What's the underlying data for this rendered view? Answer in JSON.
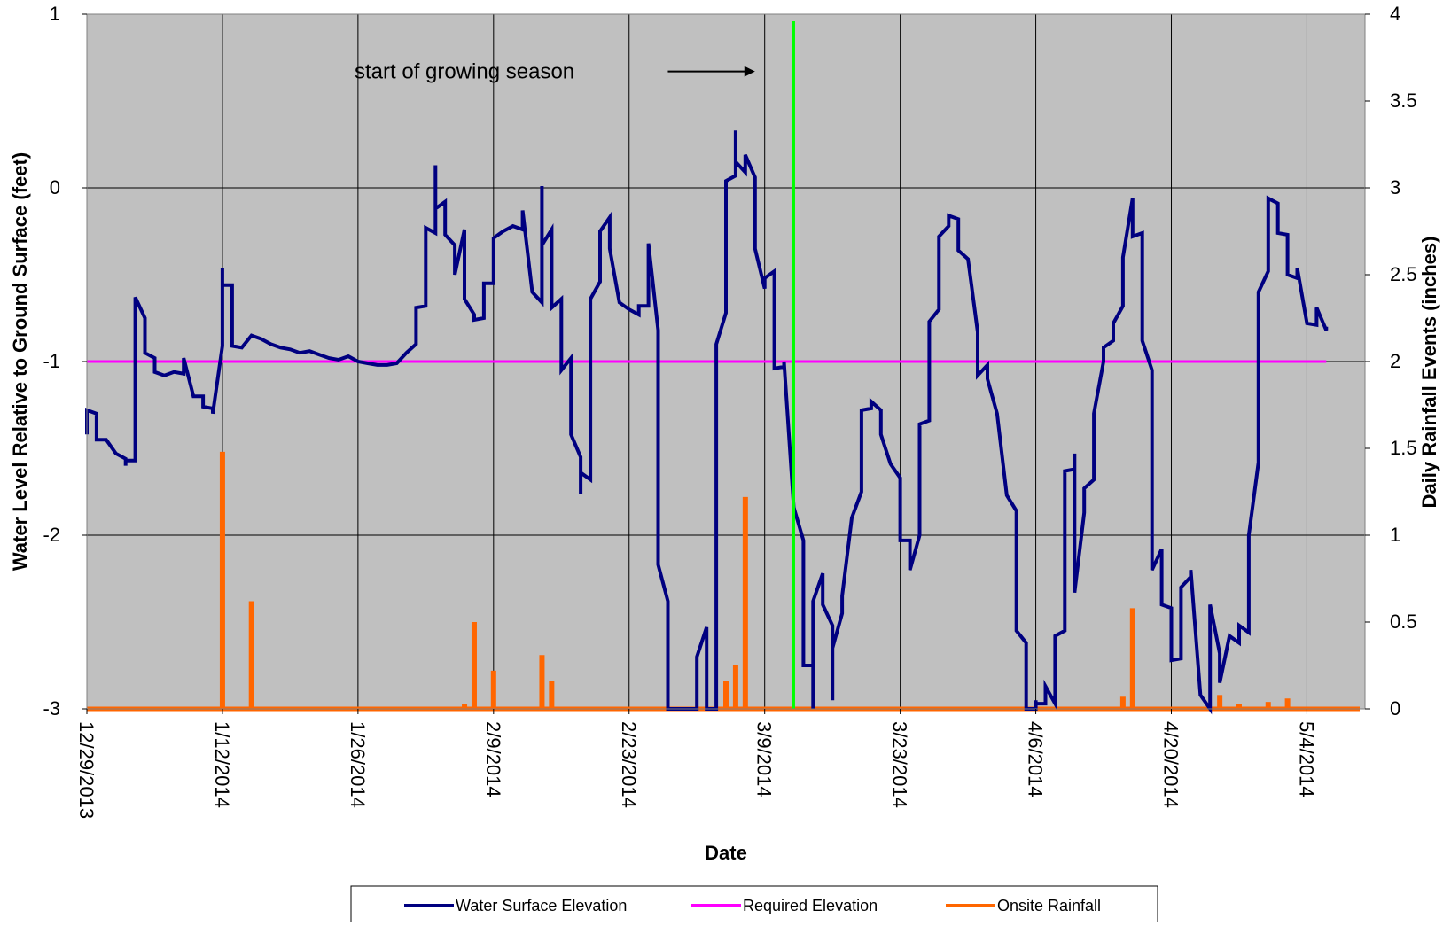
{
  "chart_data": {
    "type": "line",
    "xlabel": "Date",
    "ylabel": "Water Level Relative to Ground Surface (feet)",
    "y2label": "Daily Rainfall Events (inches)",
    "xlim": [
      "2013-12-29",
      "2014-05-10"
    ],
    "ylim": [
      -3,
      1
    ],
    "y2lim": [
      0,
      4
    ],
    "x_ticks": [
      "2013-12-29",
      "2014-01-12",
      "2014-01-26",
      "2014-02-09",
      "2014-02-23",
      "2014-03-09",
      "2014-03-23",
      "2014-04-06",
      "2014-04-20",
      "2014-05-04"
    ],
    "x_tick_labels": [
      "12/29/2013",
      "1/12/2014",
      "1/26/2014",
      "2/9/2014",
      "2/23/2014",
      "3/9/2014",
      "3/23/2014",
      "4/6/2014",
      "4/20/2014",
      "5/4/2014"
    ],
    "y_ticks": [
      -3,
      -2,
      -1,
      0,
      1
    ],
    "y_tick_labels": [
      "-3",
      "-2",
      "-1",
      "0",
      "1"
    ],
    "y2_ticks": [
      0,
      0.5,
      1,
      1.5,
      2,
      2.5,
      3,
      3.5,
      4
    ],
    "y2_tick_labels": [
      "0",
      "0.5",
      "1",
      "1.5",
      "2",
      "2.5",
      "3",
      "3.5",
      "4"
    ],
    "grid": true,
    "plot_background": "#c0c0c0",
    "legend_position": "bottom",
    "annotation": {
      "text": "start of growing season",
      "arrow_from_date": "2014-02-27",
      "arrow_to_date": "2014-03-08",
      "arrow_y": 0.67,
      "marker_date": "2014-03-12",
      "marker_color": "#00ff00"
    },
    "series": [
      {
        "name": "Water Surface Elevation",
        "color": "#000080",
        "axis": "left",
        "style": "line",
        "points": [
          [
            "2013-12-29",
            -1.42
          ],
          [
            "2013-12-29",
            -1.28
          ],
          [
            "2013-12-30",
            -1.3
          ],
          [
            "2013-12-30",
            -1.45
          ],
          [
            "2013-12-31",
            -1.45
          ],
          [
            "2014-01-01",
            -1.53
          ],
          [
            "2014-01-02",
            -1.56
          ],
          [
            "2014-01-02",
            -1.6
          ],
          [
            "2014-01-02",
            -1.57
          ],
          [
            "2014-01-03",
            -1.57
          ],
          [
            "2014-01-03",
            -0.63
          ],
          [
            "2014-01-04",
            -0.75
          ],
          [
            "2014-01-04",
            -0.95
          ],
          [
            "2014-01-05",
            -0.98
          ],
          [
            "2014-01-05",
            -1.06
          ],
          [
            "2014-01-06",
            -1.08
          ],
          [
            "2014-01-07",
            -1.06
          ],
          [
            "2014-01-08",
            -1.07
          ],
          [
            "2014-01-08",
            -0.98
          ],
          [
            "2014-01-09",
            -1.2
          ],
          [
            "2014-01-10",
            -1.2
          ],
          [
            "2014-01-10",
            -1.26
          ],
          [
            "2014-01-11",
            -1.27
          ],
          [
            "2014-01-11",
            -1.3
          ],
          [
            "2014-01-12",
            -0.91
          ],
          [
            "2014-01-12",
            -0.46
          ],
          [
            "2014-01-12",
            -0.56
          ],
          [
            "2014-01-13",
            -0.56
          ],
          [
            "2014-01-13",
            -0.91
          ],
          [
            "2014-01-14",
            -0.92
          ],
          [
            "2014-01-15",
            -0.85
          ],
          [
            "2014-01-16",
            -0.87
          ],
          [
            "2014-01-17",
            -0.9
          ],
          [
            "2014-01-18",
            -0.92
          ],
          [
            "2014-01-19",
            -0.93
          ],
          [
            "2014-01-20",
            -0.95
          ],
          [
            "2014-01-21",
            -0.94
          ],
          [
            "2014-01-22",
            -0.96
          ],
          [
            "2014-01-23",
            -0.98
          ],
          [
            "2014-01-24",
            -0.99
          ],
          [
            "2014-01-25",
            -0.97
          ],
          [
            "2014-01-26",
            -1.0
          ],
          [
            "2014-01-27",
            -1.01
          ],
          [
            "2014-01-28",
            -1.02
          ],
          [
            "2014-01-29",
            -1.02
          ],
          [
            "2014-01-30",
            -1.01
          ],
          [
            "2014-01-31",
            -0.95
          ],
          [
            "2014-02-01",
            -0.9
          ],
          [
            "2014-02-01",
            -0.69
          ],
          [
            "2014-02-02",
            -0.68
          ],
          [
            "2014-02-02",
            -0.23
          ],
          [
            "2014-02-03",
            -0.26
          ],
          [
            "2014-02-03",
            0.13
          ],
          [
            "2014-02-03",
            -0.12
          ],
          [
            "2014-02-04",
            -0.08
          ],
          [
            "2014-02-04",
            -0.27
          ],
          [
            "2014-02-05",
            -0.33
          ],
          [
            "2014-02-05",
            -0.5
          ],
          [
            "2014-02-06",
            -0.24
          ],
          [
            "2014-02-06",
            -0.64
          ],
          [
            "2014-02-07",
            -0.73
          ],
          [
            "2014-02-07",
            -0.76
          ],
          [
            "2014-02-08",
            -0.75
          ],
          [
            "2014-02-08",
            -0.55
          ],
          [
            "2014-02-09",
            -0.55
          ],
          [
            "2014-02-09",
            -0.29
          ],
          [
            "2014-02-10",
            -0.25
          ],
          [
            "2014-02-11",
            -0.22
          ],
          [
            "2014-02-12",
            -0.24
          ],
          [
            "2014-02-12",
            -0.13
          ],
          [
            "2014-02-13",
            -0.6
          ],
          [
            "2014-02-14",
            -0.66
          ],
          [
            "2014-02-14",
            0.01
          ],
          [
            "2014-02-14",
            -0.33
          ],
          [
            "2014-02-15",
            -0.24
          ],
          [
            "2014-02-15",
            -0.69
          ],
          [
            "2014-02-16",
            -0.64
          ],
          [
            "2014-02-16",
            -1.05
          ],
          [
            "2014-02-17",
            -0.98
          ],
          [
            "2014-02-17",
            -1.42
          ],
          [
            "2014-02-18",
            -1.55
          ],
          [
            "2014-02-18",
            -1.76
          ],
          [
            "2014-02-18",
            -1.64
          ],
          [
            "2014-02-19",
            -1.68
          ],
          [
            "2014-02-19",
            -0.64
          ],
          [
            "2014-02-20",
            -0.54
          ],
          [
            "2014-02-20",
            -0.25
          ],
          [
            "2014-02-21",
            -0.17
          ],
          [
            "2014-02-21",
            -0.35
          ],
          [
            "2014-02-22",
            -0.66
          ],
          [
            "2014-02-23",
            -0.7
          ],
          [
            "2014-02-24",
            -0.73
          ],
          [
            "2014-02-24",
            -0.68
          ],
          [
            "2014-02-25",
            -0.68
          ],
          [
            "2014-02-25",
            -0.32
          ],
          [
            "2014-02-26",
            -0.82
          ],
          [
            "2014-02-26",
            -2.17
          ],
          [
            "2014-02-27",
            -2.38
          ],
          [
            "2014-02-27",
            -3.0
          ],
          [
            "2014-03-02",
            -3.0
          ],
          [
            "2014-03-02",
            -2.7
          ],
          [
            "2014-03-03",
            -2.53
          ],
          [
            "2014-03-03",
            -3.0
          ],
          [
            "2014-03-04",
            -3.0
          ],
          [
            "2014-03-04",
            -0.9
          ],
          [
            "2014-03-05",
            -0.72
          ],
          [
            "2014-03-05",
            0.04
          ],
          [
            "2014-03-06",
            0.07
          ],
          [
            "2014-03-06",
            0.33
          ],
          [
            "2014-03-06",
            0.15
          ],
          [
            "2014-03-07",
            0.09
          ],
          [
            "2014-03-07",
            0.19
          ],
          [
            "2014-03-08",
            0.06
          ],
          [
            "2014-03-08",
            -0.35
          ],
          [
            "2014-03-09",
            -0.58
          ],
          [
            "2014-03-09",
            -0.52
          ],
          [
            "2014-03-10",
            -0.48
          ],
          [
            "2014-03-10",
            -1.04
          ],
          [
            "2014-03-11",
            -1.03
          ],
          [
            "2014-03-11",
            -1.0
          ],
          [
            "2014-03-12",
            -1.84
          ],
          [
            "2014-03-13",
            -2.03
          ],
          [
            "2014-03-13",
            -2.75
          ],
          [
            "2014-03-14",
            -2.75
          ],
          [
            "2014-03-14",
            -3.0
          ],
          [
            "2014-03-14",
            -2.38
          ],
          [
            "2014-03-15",
            -2.22
          ],
          [
            "2014-03-15",
            -2.4
          ],
          [
            "2014-03-16",
            -2.52
          ],
          [
            "2014-03-16",
            -2.95
          ],
          [
            "2014-03-16",
            -2.65
          ],
          [
            "2014-03-17",
            -2.45
          ],
          [
            "2014-03-17",
            -2.35
          ],
          [
            "2014-03-18",
            -1.9
          ],
          [
            "2014-03-19",
            -1.75
          ],
          [
            "2014-03-19",
            -1.28
          ],
          [
            "2014-03-20",
            -1.27
          ],
          [
            "2014-03-20",
            -1.23
          ],
          [
            "2014-03-21",
            -1.28
          ],
          [
            "2014-03-21",
            -1.42
          ],
          [
            "2014-03-22",
            -1.59
          ],
          [
            "2014-03-23",
            -1.67
          ],
          [
            "2014-03-23",
            -2.03
          ],
          [
            "2014-03-24",
            -2.03
          ],
          [
            "2014-03-24",
            -2.2
          ],
          [
            "2014-03-25",
            -2.0
          ],
          [
            "2014-03-25",
            -1.36
          ],
          [
            "2014-03-26",
            -1.34
          ],
          [
            "2014-03-26",
            -0.77
          ],
          [
            "2014-03-27",
            -0.7
          ],
          [
            "2014-03-27",
            -0.28
          ],
          [
            "2014-03-28",
            -0.22
          ],
          [
            "2014-03-28",
            -0.16
          ],
          [
            "2014-03-29",
            -0.18
          ],
          [
            "2014-03-29",
            -0.36
          ],
          [
            "2014-03-30",
            -0.41
          ],
          [
            "2014-03-31",
            -0.83
          ],
          [
            "2014-03-31",
            -1.08
          ],
          [
            "2014-04-01",
            -1.02
          ],
          [
            "2014-04-01",
            -1.1
          ],
          [
            "2014-04-02",
            -1.3
          ],
          [
            "2014-04-03",
            -1.77
          ],
          [
            "2014-04-04",
            -1.86
          ],
          [
            "2014-04-04",
            -2.55
          ],
          [
            "2014-04-05",
            -2.62
          ],
          [
            "2014-04-05",
            -3.0
          ],
          [
            "2014-04-06",
            -3.0
          ],
          [
            "2014-04-06",
            -2.95
          ],
          [
            "2014-04-06",
            -2.97
          ],
          [
            "2014-04-07",
            -2.97
          ],
          [
            "2014-04-07",
            -2.87
          ],
          [
            "2014-04-08",
            -2.97
          ],
          [
            "2014-04-08",
            -2.58
          ],
          [
            "2014-04-09",
            -2.55
          ],
          [
            "2014-04-09",
            -1.63
          ],
          [
            "2014-04-10",
            -1.62
          ],
          [
            "2014-04-10",
            -1.53
          ],
          [
            "2014-04-10",
            -2.33
          ],
          [
            "2014-04-11",
            -1.87
          ],
          [
            "2014-04-11",
            -1.73
          ],
          [
            "2014-04-12",
            -1.68
          ],
          [
            "2014-04-12",
            -1.3
          ],
          [
            "2014-04-13",
            -1.0
          ],
          [
            "2014-04-13",
            -0.92
          ],
          [
            "2014-04-14",
            -0.88
          ],
          [
            "2014-04-14",
            -0.78
          ],
          [
            "2014-04-15",
            -0.68
          ],
          [
            "2014-04-15",
            -0.4
          ],
          [
            "2014-04-16",
            -0.06
          ],
          [
            "2014-04-16",
            -0.08
          ],
          [
            "2014-04-16",
            -0.28
          ],
          [
            "2014-04-17",
            -0.26
          ],
          [
            "2014-04-17",
            -0.88
          ],
          [
            "2014-04-18",
            -1.05
          ],
          [
            "2014-04-18",
            -2.2
          ],
          [
            "2014-04-19",
            -2.08
          ],
          [
            "2014-04-19",
            -2.4
          ],
          [
            "2014-04-20",
            -2.42
          ],
          [
            "2014-04-20",
            -2.72
          ],
          [
            "2014-04-21",
            -2.71
          ],
          [
            "2014-04-21",
            -2.3
          ],
          [
            "2014-04-22",
            -2.24
          ],
          [
            "2014-04-22",
            -2.2
          ],
          [
            "2014-04-23",
            -2.92
          ],
          [
            "2014-04-24",
            -3.0
          ],
          [
            "2014-04-24",
            -2.4
          ],
          [
            "2014-04-25",
            -2.68
          ],
          [
            "2014-04-25",
            -2.85
          ],
          [
            "2014-04-26",
            -2.58
          ],
          [
            "2014-04-27",
            -2.62
          ],
          [
            "2014-04-27",
            -2.52
          ],
          [
            "2014-04-28",
            -2.56
          ],
          [
            "2014-04-28",
            -2.0
          ],
          [
            "2014-04-29",
            -1.58
          ],
          [
            "2014-04-29",
            -0.6
          ],
          [
            "2014-04-30",
            -0.48
          ],
          [
            "2014-04-30",
            -0.06
          ],
          [
            "2014-05-01",
            -0.09
          ],
          [
            "2014-05-01",
            -0.26
          ],
          [
            "2014-05-02",
            -0.27
          ],
          [
            "2014-05-02",
            -0.5
          ],
          [
            "2014-05-03",
            -0.52
          ],
          [
            "2014-05-03",
            -0.46
          ],
          [
            "2014-05-04",
            -0.78
          ],
          [
            "2014-05-05",
            -0.79
          ],
          [
            "2014-05-05",
            -0.69
          ],
          [
            "2014-05-06",
            -0.82
          ],
          [
            "2014-05-06",
            -0.8
          ]
        ]
      },
      {
        "name": "Required Elevation",
        "color": "#ff00ff",
        "axis": "left",
        "style": "line",
        "points": [
          [
            "2013-12-29",
            -1.0
          ],
          [
            "2014-05-06",
            -1.0
          ]
        ]
      },
      {
        "name": "Onsite Rainfall",
        "color": "#ff6600",
        "axis": "right",
        "style": "spike",
        "points": [
          [
            "2014-01-12",
            1.48
          ],
          [
            "2014-01-15",
            0.62
          ],
          [
            "2014-02-06",
            0.03
          ],
          [
            "2014-02-07",
            0.5
          ],
          [
            "2014-02-09",
            0.22
          ],
          [
            "2014-02-14",
            0.31
          ],
          [
            "2014-02-15",
            0.16
          ],
          [
            "2014-03-05",
            0.16
          ],
          [
            "2014-03-06",
            0.25
          ],
          [
            "2014-03-07",
            1.22
          ],
          [
            "2014-04-15",
            0.07
          ],
          [
            "2014-04-16",
            0.58
          ],
          [
            "2014-04-25",
            0.08
          ],
          [
            "2014-04-27",
            0.03
          ],
          [
            "2014-04-30",
            0.04
          ],
          [
            "2014-05-02",
            0.06
          ]
        ]
      }
    ]
  }
}
